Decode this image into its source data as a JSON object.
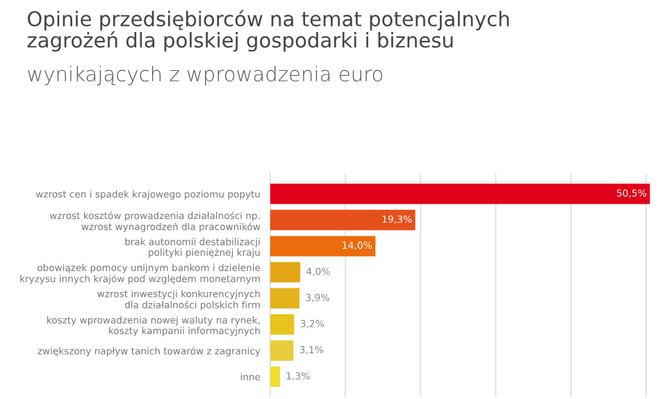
{
  "chart_data": {
    "type": "bar",
    "orientation": "horizontal",
    "title": "Opinie przedsiębiorców na temat potencjalnych\nzagrożeń dla polskiej gospodarki i biznesu",
    "subtitle": "wynikających z wprowadzenia euro",
    "categories": [
      "wzrost cen i spadek krajowego poziomu popytu",
      "wzrost kosztów prowadzenia działalności np.\nwzrost wynagrodzeń dla pracowników",
      "brak autonomii destabilizacji\npolityki pieniężnej kraju",
      "obowiązek pomocy unijnym bankom i dzielenie\nkryzysu innych krajów pod względem monetarnym",
      "wzrost inwestycji konkurencyjnych\ndla działalności polskich firm",
      "koszty wprowadzenia nowej waluty na rynek,\nkoszty kampanii informacyjnych",
      "zwiększony napływ tanich towarów z zagranicy",
      "inne"
    ],
    "values": [
      50.5,
      19.3,
      14.0,
      4.0,
      3.9,
      3.2,
      3.1,
      1.3
    ],
    "colors": [
      "#e2001a",
      "#e6501a",
      "#ec6b0c",
      "#e5a716",
      "#e5b21c",
      "#e8c31e",
      "#e9cc3a",
      "#f0dc2a"
    ],
    "value_labels": [
      "50,5%",
      "19,3%",
      "14,0%",
      "4,0%",
      "3,9%",
      "3,2%",
      "3,1%",
      "1,3%"
    ],
    "xlim": [
      0,
      51
    ],
    "xticks": [
      {
        "value": 0,
        "label": null
      },
      {
        "value": 10,
        "label": null
      },
      {
        "value": 20,
        "label": null
      },
      {
        "value": 30,
        "label": null
      },
      {
        "value": 40,
        "label": null
      },
      {
        "value": 50,
        "label": null
      }
    ],
    "grid": "x",
    "legend": false
  }
}
